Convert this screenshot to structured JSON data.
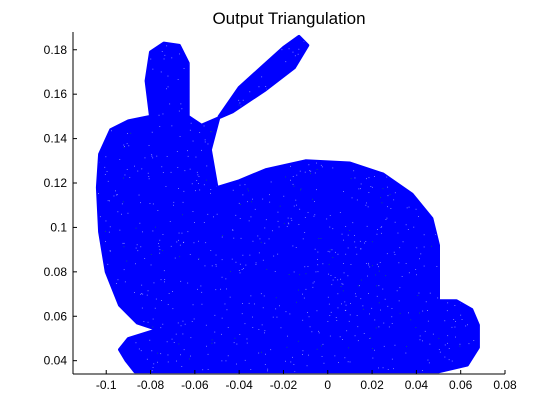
{
  "chart_data": {
    "type": "scatter",
    "title": "Output Triangulation",
    "xlabel": "",
    "ylabel": "",
    "xlim": [
      -0.115,
      0.08
    ],
    "ylim": [
      0.034,
      0.188
    ],
    "grid": false,
    "x_ticks": [
      -0.1,
      -0.08,
      -0.06,
      -0.04,
      -0.02,
      0,
      0.02,
      0.04,
      0.06,
      0.08
    ],
    "x_tick_labels": [
      "-0.1",
      "-0.08",
      "-0.06",
      "-0.04",
      "-0.02",
      "0",
      "0.02",
      "0.04",
      "0.06",
      "0.08"
    ],
    "y_ticks": [
      0.04,
      0.06,
      0.08,
      0.1,
      0.12,
      0.14,
      0.16,
      0.18
    ],
    "y_tick_labels": [
      "0.04",
      "0.06",
      "0.08",
      "0.1",
      "0.12",
      "0.14",
      "0.16",
      "0.18"
    ],
    "colors": {
      "fill": "#0000ff",
      "speckle": "#ffffff",
      "accent": "#1aa01a"
    },
    "shape_outline": [
      [
        -0.087,
        0.035
      ],
      [
        -0.07,
        0.035
      ],
      [
        -0.05,
        0.035
      ],
      [
        -0.03,
        0.035
      ],
      [
        -0.01,
        0.035
      ],
      [
        0.01,
        0.035
      ],
      [
        0.03,
        0.035
      ],
      [
        0.05,
        0.035
      ],
      [
        0.063,
        0.038
      ],
      [
        0.068,
        0.046
      ],
      [
        0.068,
        0.056
      ],
      [
        0.065,
        0.063
      ],
      [
        0.058,
        0.067
      ],
      [
        0.05,
        0.067
      ],
      [
        0.05,
        0.078
      ],
      [
        0.05,
        0.092
      ],
      [
        0.047,
        0.104
      ],
      [
        0.038,
        0.115
      ],
      [
        0.025,
        0.124
      ],
      [
        0.01,
        0.129
      ],
      [
        -0.01,
        0.13
      ],
      [
        -0.028,
        0.126
      ],
      [
        -0.04,
        0.121
      ],
      [
        -0.05,
        0.118
      ],
      [
        -0.053,
        0.135
      ],
      [
        -0.049,
        0.15
      ],
      [
        -0.04,
        0.163
      ],
      [
        -0.03,
        0.172
      ],
      [
        -0.02,
        0.181
      ],
      [
        -0.013,
        0.186
      ],
      [
        -0.009,
        0.182
      ],
      [
        -0.015,
        0.172
      ],
      [
        -0.028,
        0.162
      ],
      [
        -0.043,
        0.152
      ],
      [
        -0.057,
        0.146
      ],
      [
        -0.063,
        0.15
      ],
      [
        -0.063,
        0.162
      ],
      [
        -0.063,
        0.174
      ],
      [
        -0.067,
        0.182
      ],
      [
        -0.074,
        0.183
      ],
      [
        -0.08,
        0.179
      ],
      [
        -0.082,
        0.166
      ],
      [
        -0.08,
        0.15
      ],
      [
        -0.09,
        0.148
      ],
      [
        -0.098,
        0.144
      ],
      [
        -0.103,
        0.133
      ],
      [
        -0.104,
        0.118
      ],
      [
        -0.103,
        0.098
      ],
      [
        -0.1,
        0.08
      ],
      [
        -0.094,
        0.065
      ],
      [
        -0.086,
        0.057
      ],
      [
        -0.077,
        0.054
      ],
      [
        -0.09,
        0.05
      ],
      [
        -0.094,
        0.045
      ],
      [
        -0.091,
        0.04
      ]
    ]
  }
}
